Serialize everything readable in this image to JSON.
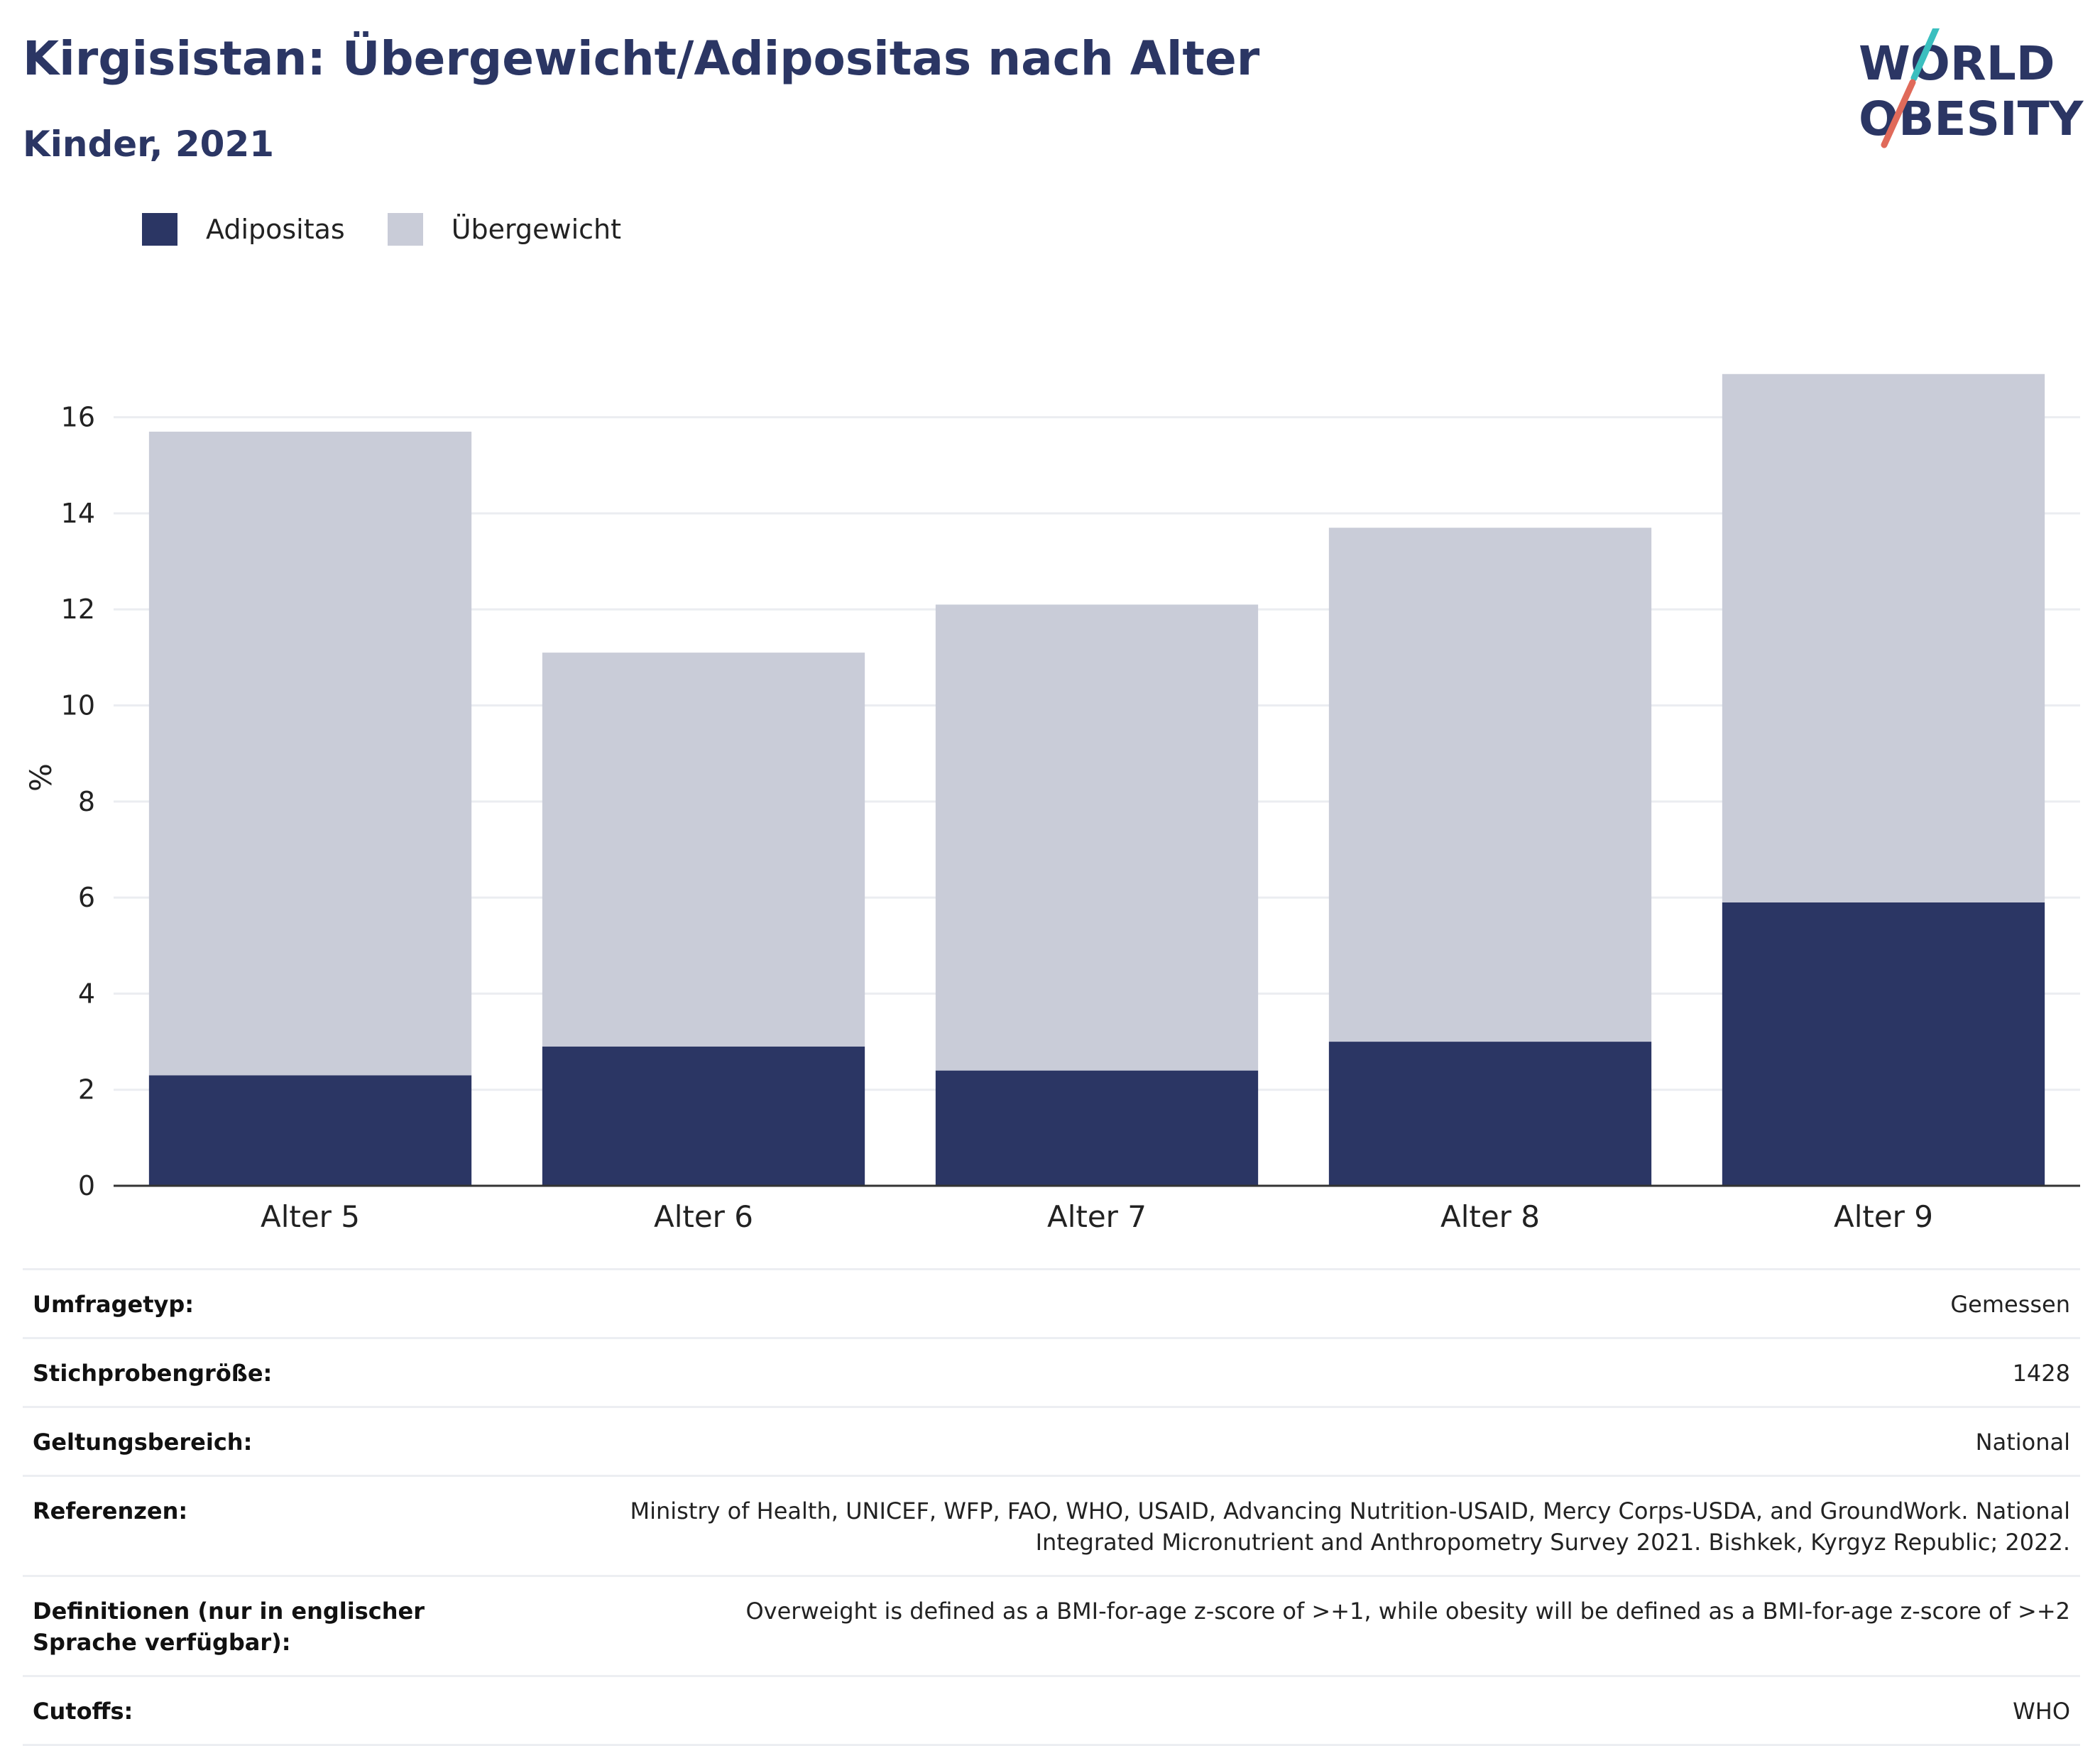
{
  "title": "Kirgisistan: Übergewicht/Adipositas nach Alter",
  "subtitle": "Kinder, 2021",
  "logo": {
    "line1": "WORLD",
    "line2": "OBESITY"
  },
  "colors": {
    "adipositas": "#2b3664",
    "uebergewicht": "#c9ccd8",
    "title": "#2b3664",
    "logo_teal": "#3bbfbf",
    "logo_coral": "#e06a5a"
  },
  "chart_data": {
    "type": "bar",
    "stacked": true,
    "categories": [
      "Alter 5",
      "Alter 6",
      "Alter 7",
      "Alter 8",
      "Alter 9"
    ],
    "series": [
      {
        "name": "Adipositas",
        "values": [
          2.3,
          2.9,
          2.4,
          3.0,
          5.9
        ]
      },
      {
        "name": "Übergewicht",
        "values": [
          13.4,
          8.2,
          9.7,
          10.7,
          11.0
        ]
      }
    ],
    "totals": [
      15.7,
      11.1,
      12.1,
      13.7,
      16.9
    ],
    "ylabel": "%",
    "ylim": [
      0,
      17
    ],
    "yticks": [
      0,
      2,
      4,
      6,
      8,
      10,
      12,
      14,
      16
    ],
    "grid": true,
    "legend_position": "top-left"
  },
  "info": [
    {
      "label": "Umfragetyp:",
      "value": "Gemessen"
    },
    {
      "label": "Stichprobengröße:",
      "value": "1428"
    },
    {
      "label": "Geltungsbereich:",
      "value": "National"
    },
    {
      "label": "Referenzen:",
      "value": "Ministry of Health, UNICEF, WFP, FAO, WHO, USAID, Advancing Nutrition-USAID, Mercy Corps-USDA, and GroundWork. National Integrated Micronutrient and Anthropometry Survey 2021. Bishkek, Kyrgyz Republic; 2022."
    },
    {
      "label": "Definitionen (nur in englischer Sprache verfügbar):",
      "value": "Overweight is defined as a BMI-for-age z-score of >+1, while obesity will be defined as a BMI-for-age z-score of >+2"
    },
    {
      "label": "Cutoffs:",
      "value": "WHO"
    }
  ]
}
